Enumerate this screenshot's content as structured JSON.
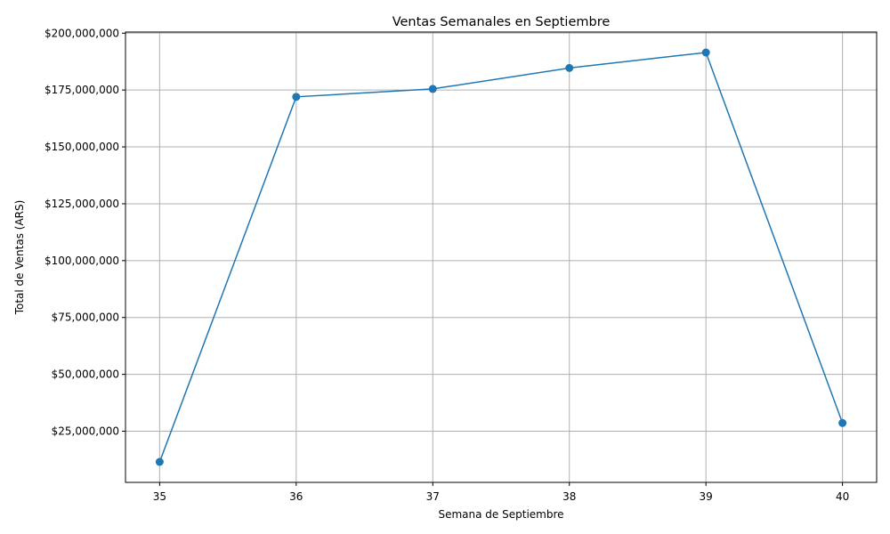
{
  "chart_data": {
    "type": "line",
    "title": "Ventas Semanales en Septiembre",
    "xlabel": "Semana de Septiembre",
    "ylabel": "Total de Ventas (ARS)",
    "x": [
      35,
      36,
      37,
      38,
      39,
      40
    ],
    "series": [
      {
        "values": [
          11500000,
          172000000,
          175500000,
          184700000,
          191500000,
          28600000
        ],
        "color": "#1f77b4",
        "marker": "circle"
      }
    ],
    "xticks": [
      "35",
      "36",
      "37",
      "38",
      "39",
      "40"
    ],
    "yticks": [
      {
        "value": 25000000,
        "label": "$25,000,000"
      },
      {
        "value": 50000000,
        "label": "$50,000,000"
      },
      {
        "value": 75000000,
        "label": "$75,000,000"
      },
      {
        "value": 100000000,
        "label": "$100,000,000"
      },
      {
        "value": 125000000,
        "label": "$125,000,000"
      },
      {
        "value": 150000000,
        "label": "$150,000,000"
      },
      {
        "value": 175000000,
        "label": "$175,000,000"
      },
      {
        "value": 200000000,
        "label": "$200,000,000"
      }
    ],
    "xlim": [
      34.75,
      40.25
    ],
    "ylim": [
      2500000,
      200500000
    ],
    "grid": true
  }
}
